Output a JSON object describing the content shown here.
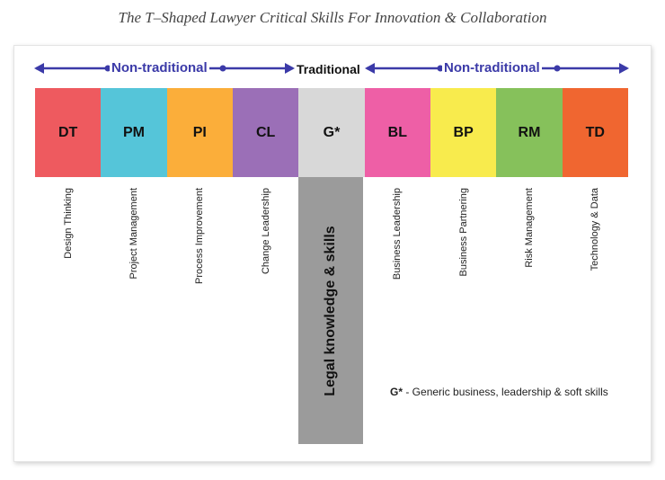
{
  "caption": "The T–Shaped Lawyer Critical Skills For Innovation & Collaboration",
  "header": {
    "left_label": "Non-traditional",
    "center_label": "Traditional",
    "right_label": "Non-traditional"
  },
  "skills": [
    {
      "code": "DT",
      "name": "Design Thinking",
      "color": "#ee5a5f"
    },
    {
      "code": "PM",
      "name": "Project Management",
      "color": "#55c5d9"
    },
    {
      "code": "PI",
      "name": "Process Improvement",
      "color": "#fbae3a"
    },
    {
      "code": "CL",
      "name": "Change Leadership",
      "color": "#9b6fb7"
    },
    {
      "code": "G*",
      "name": "",
      "color": "#d8d8d8"
    },
    {
      "code": "BL",
      "name": "Business Leadership",
      "color": "#ee5fa6"
    },
    {
      "code": "BP",
      "name": "Business Partnering",
      "color": "#f8eb4d"
    },
    {
      "code": "RM",
      "name": "Risk Management",
      "color": "#86c15b"
    },
    {
      "code": "TD",
      "name": "Technology & Data",
      "color": "#f06630"
    }
  ],
  "stem_label": "Legal knowledge & skills",
  "note": {
    "key": "G*",
    "text": " - Generic business, leadership & soft skills"
  },
  "colors": {
    "arrow": "#3b3aa8",
    "stem": "#9b9b9b"
  }
}
